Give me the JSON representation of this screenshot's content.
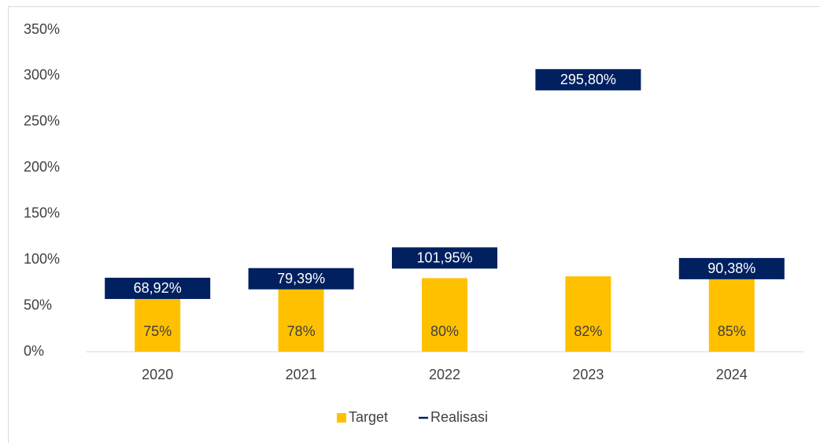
{
  "chart_data": {
    "type": "bar",
    "categories": [
      "2020",
      "2021",
      "2022",
      "2023",
      "2024"
    ],
    "series": [
      {
        "name": "Target",
        "color": "#FFC000",
        "values": [
          75,
          78,
          80,
          82,
          85
        ],
        "value_labels": [
          "75%",
          "78%",
          "80%",
          "82%",
          "85%"
        ]
      },
      {
        "name": "Realisasi",
        "color": "#002060",
        "values": [
          68.92,
          79.39,
          101.95,
          295.8,
          90.38
        ],
        "value_labels": [
          "68,92%",
          "79,39%",
          "101,95%",
          "295,80%",
          "90,38%"
        ]
      }
    ],
    "ylim": [
      0,
      350
    ],
    "yticks": [
      {
        "value": 0,
        "label": "0%"
      },
      {
        "value": 50,
        "label": "50%"
      },
      {
        "value": 100,
        "label": "100%"
      },
      {
        "value": 150,
        "label": "150%"
      },
      {
        "value": 200,
        "label": "200%"
      },
      {
        "value": 250,
        "label": "250%"
      },
      {
        "value": 300,
        "label": "300%"
      },
      {
        "value": 350,
        "label": "350%"
      }
    ],
    "grid": false,
    "legend": "bottom"
  }
}
